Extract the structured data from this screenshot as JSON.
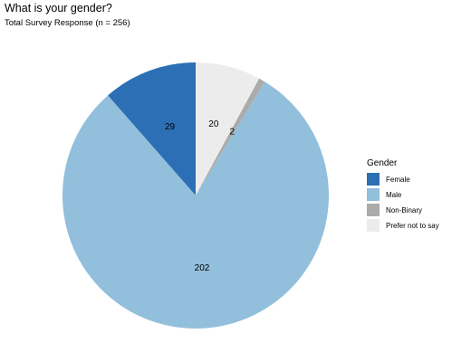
{
  "chart_data": {
    "type": "pie",
    "title": "What is your gender?",
    "subtitle": "Total Survey Response (n = 256)",
    "legend_title": "Gender",
    "legend_position": "right",
    "start_angle": "12 o'clock",
    "direction": "counterclockwise",
    "slices": [
      {
        "name": "Female",
        "value": 29,
        "color": "#2C6FB4"
      },
      {
        "name": "Male",
        "value": 202,
        "color": "#92BFDB"
      },
      {
        "name": "Non-Binary",
        "value": 2,
        "color": "#ABABAB"
      },
      {
        "name": "Prefer not to say",
        "value": 20,
        "color": "#ECECEC"
      }
    ]
  }
}
